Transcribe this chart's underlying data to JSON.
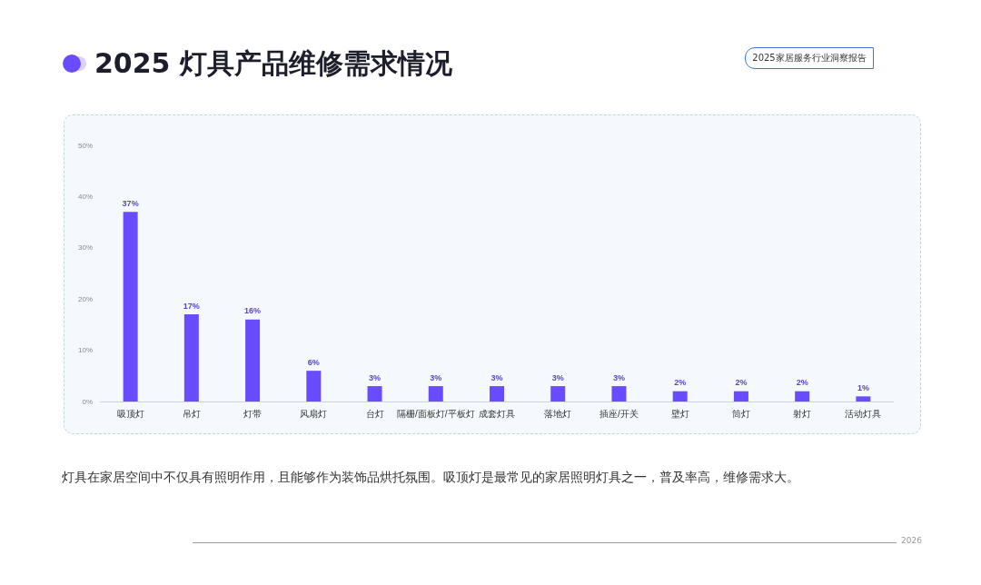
{
  "chart_data": {
    "type": "bar",
    "title": "2025 灯具产品维修需求情况",
    "categories": [
      "吸顶灯",
      "吊灯",
      "灯带",
      "风扇灯",
      "台灯",
      "隔栅/面板灯/平板灯",
      "成套灯具",
      "落地灯",
      "插座/开关",
      "壁灯",
      "筒灯",
      "射灯",
      "活动灯具"
    ],
    "values": [
      37,
      17,
      16,
      6,
      3,
      3,
      3,
      3,
      3,
      2,
      2,
      2,
      1
    ],
    "value_labels": [
      "37%",
      "17%",
      "16%",
      "6%",
      "3%",
      "3%",
      "3%",
      "3%",
      "3%",
      "2%",
      "2%",
      "2%",
      "1%"
    ],
    "color": "#6a4cff",
    "ylim": [
      0,
      50
    ],
    "yticks": [
      {
        "value": 0,
        "label": "0%"
      },
      {
        "value": 10,
        "label": "10%"
      },
      {
        "value": 20,
        "label": "20%"
      },
      {
        "value": 30,
        "label": "30%"
      },
      {
        "value": 40,
        "label": "40%"
      },
      {
        "value": 50,
        "label": "50%"
      }
    ],
    "grid": false,
    "annotations": [
      "2025家居服务行业洞察报告",
      "灯具在家居空间中不仅具有照明作用，且能够作为装饰品烘托氛围。吸顶灯是最常见的家居照明灯具之一，普及率高，维修需求大。",
      "2026"
    ]
  }
}
